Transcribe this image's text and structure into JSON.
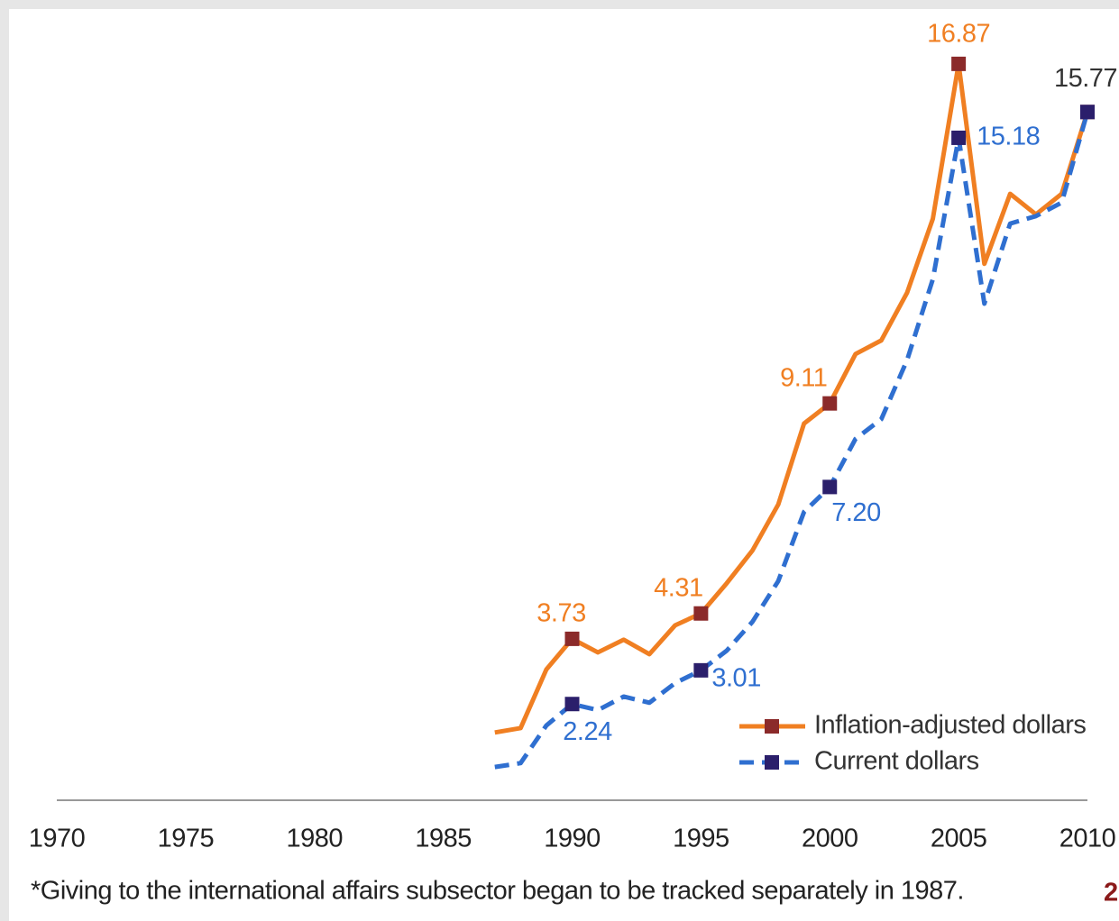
{
  "chart_data": {
    "type": "line",
    "x": [
      1987,
      1988,
      1989,
      1990,
      1991,
      1992,
      1993,
      1994,
      1995,
      1996,
      1997,
      1998,
      1999,
      2000,
      2001,
      2002,
      2003,
      2004,
      2005,
      2006,
      2007,
      2008,
      2009,
      2010
    ],
    "xlim": [
      1970,
      2010
    ],
    "xticks": [
      1970,
      1975,
      1980,
      1985,
      1990,
      1995,
      2000,
      2005,
      2010
    ],
    "ylim": [
      0,
      18
    ],
    "legend": "lower right",
    "series": [
      {
        "name": "Inflation-adjusted dollars",
        "color": "#f07f22",
        "marker_color": "#8b2a2a",
        "dash": false,
        "values": [
          1.59,
          1.69,
          3.03,
          3.73,
          3.42,
          3.71,
          3.38,
          4.04,
          4.31,
          5.0,
          5.75,
          6.8,
          8.65,
          9.11,
          10.24,
          10.55,
          11.64,
          13.33,
          16.87,
          12.3,
          13.9,
          13.43,
          13.9,
          15.77
        ],
        "value_labels": [
          null,
          null,
          null,
          "3.73",
          null,
          null,
          null,
          null,
          "4.31",
          null,
          null,
          null,
          null,
          "9.11",
          null,
          null,
          null,
          null,
          "16.87",
          null,
          null,
          null,
          null,
          "15.77"
        ]
      },
      {
        "name": "Current dollars",
        "color": "#2f6fd0",
        "marker_color": "#2b1f6b",
        "dash": true,
        "values": [
          0.8,
          0.89,
          1.75,
          2.24,
          2.1,
          2.41,
          2.27,
          2.72,
          3.01,
          3.46,
          4.12,
          5.05,
          6.63,
          7.2,
          8.3,
          8.75,
          10.1,
          11.95,
          15.18,
          11.39,
          13.22,
          13.39,
          13.7,
          15.77
        ],
        "value_labels": [
          null,
          null,
          null,
          "2.24",
          null,
          null,
          null,
          null,
          "3.01",
          null,
          null,
          null,
          null,
          "7.20",
          null,
          null,
          null,
          null,
          "15.18",
          null,
          null,
          null,
          null,
          null
        ]
      }
    ],
    "footnote": "*Giving to the international affairs subsector began to be tracked separately in 1987."
  },
  "page_number": "2"
}
